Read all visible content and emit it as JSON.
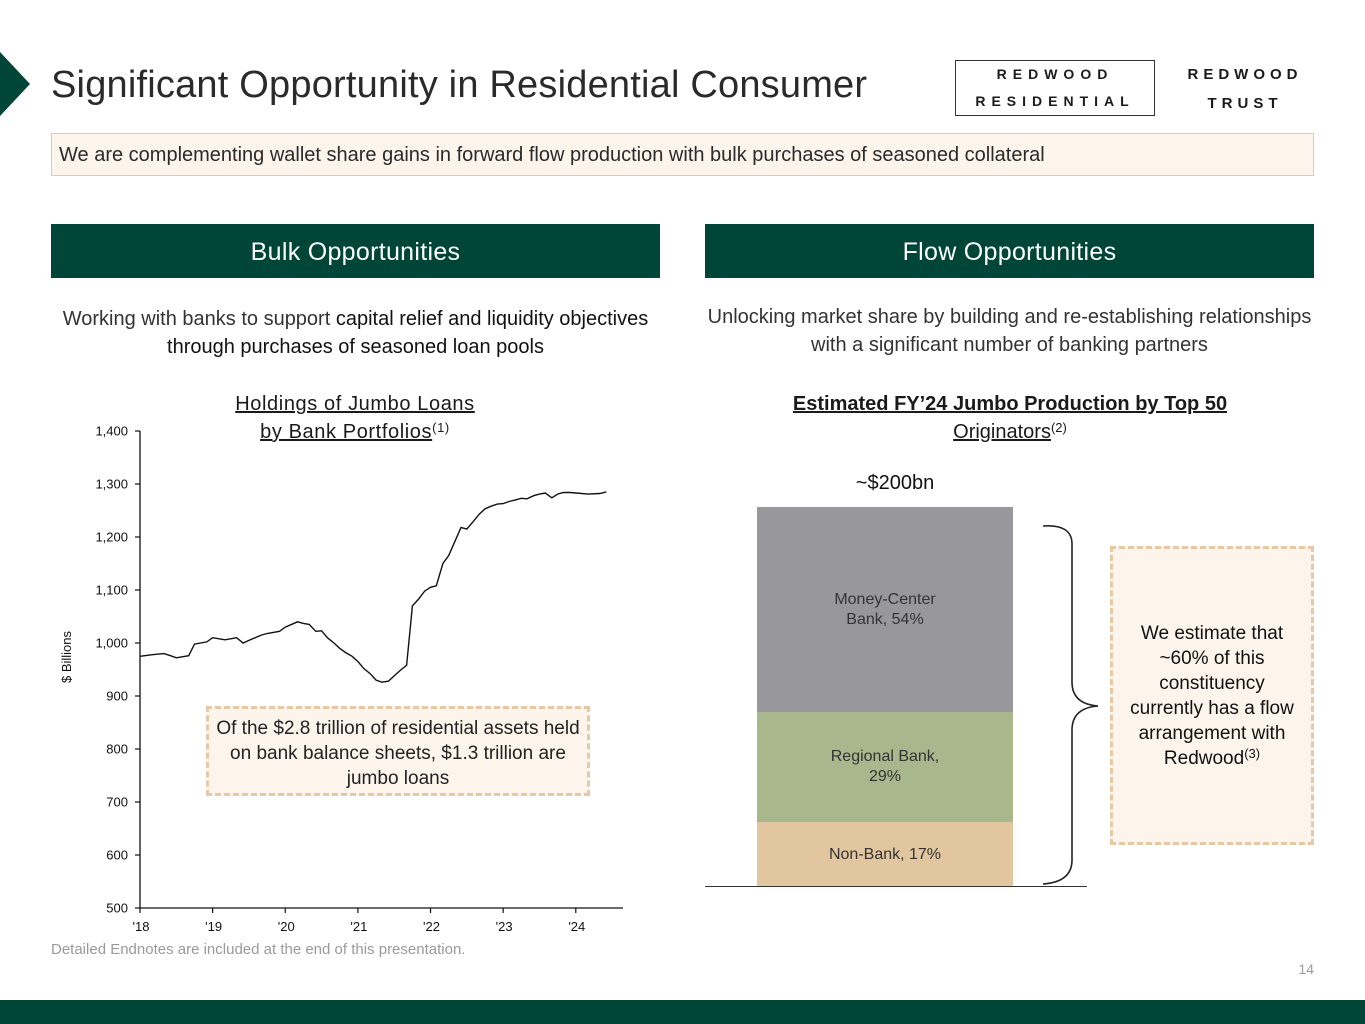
{
  "header": {
    "title": "Significant Opportunity in Residential Consumer",
    "logo_residential_line1": "REDWOOD",
    "logo_residential_line2": "RESIDENTIAL",
    "logo_trust_line1": "REDWOOD",
    "logo_trust_line2": "TRUST"
  },
  "banner": {
    "text": "We are complementing wallet share gains in forward flow production with bulk purchases of seasoned collateral"
  },
  "bulk": {
    "header": "Bulk Opportunities",
    "desc_part1": "Working with banks to support ",
    "desc_part2": "capital relief and liquidity objectives through purchases of seasoned loan pools",
    "chart_title_line1": "Holdings of Jumbo Loans",
    "chart_title_line2": "by Bank Portfolios",
    "chart_title_note": "(1)",
    "callout": "Of the $2.8 trillion of residential assets held on bank balance sheets, $1.3 trillion are jumbo loans"
  },
  "flow": {
    "header": "Flow Opportunities",
    "desc": "Unlocking market share by building and re-establishing relationships with a significant number of banking partners",
    "chart_title_line1": "Estimated FY’24 Jumbo Production by Top 50",
    "chart_title_line2": "Originators",
    "chart_title_note": "(2)",
    "callout_text": "We estimate that ~60% of this constituency currently has a flow arrangement with Redwood",
    "callout_note": "(3)"
  },
  "chart_data": [
    {
      "type": "line",
      "title": "Holdings of Jumbo Loans by Bank Portfolios(1)",
      "xlabel": "",
      "ylabel": "$ Billions",
      "ylim": [
        500,
        1400
      ],
      "xlim": [
        2018,
        2024.65
      ],
      "yticks": [
        "500",
        "600",
        "700",
        "800",
        "900",
        "1,000",
        "1,100",
        "1,200",
        "1,300",
        "1,400"
      ],
      "xticks": [
        "'18",
        "'19",
        "'20",
        "'21",
        "'22",
        "'23",
        "'24"
      ],
      "series": [
        {
          "name": "Jumbo Loans",
          "x": [
            2018.0,
            2018.17,
            2018.33,
            2018.42,
            2018.5,
            2018.67,
            2018.75,
            2018.92,
            2019.0,
            2019.17,
            2019.33,
            2019.42,
            2019.5,
            2019.67,
            2019.75,
            2019.92,
            2020.0,
            2020.17,
            2020.25,
            2020.33,
            2020.42,
            2020.5,
            2020.58,
            2020.67,
            2020.75,
            2020.83,
            2020.92,
            2021.0,
            2021.08,
            2021.17,
            2021.25,
            2021.33,
            2021.42,
            2021.5,
            2021.58,
            2021.67,
            2021.75,
            2021.83,
            2021.92,
            2022.0,
            2022.08,
            2022.17,
            2022.25,
            2022.33,
            2022.42,
            2022.5,
            2022.58,
            2022.67,
            2022.75,
            2022.83,
            2022.92,
            2023.0,
            2023.08,
            2023.17,
            2023.25,
            2023.33,
            2023.42,
            2023.5,
            2023.58,
            2023.67,
            2023.75,
            2023.83,
            2023.92,
            2024.0,
            2024.17,
            2024.33,
            2024.42
          ],
          "values": [
            975,
            978,
            980,
            976,
            972,
            976,
            998,
            1002,
            1010,
            1006,
            1010,
            1000,
            1005,
            1015,
            1018,
            1022,
            1030,
            1040,
            1037,
            1035,
            1022,
            1023,
            1010,
            1000,
            990,
            982,
            975,
            965,
            952,
            942,
            930,
            926,
            928,
            938,
            948,
            958,
            1070,
            1082,
            1098,
            1105,
            1108,
            1150,
            1165,
            1190,
            1218,
            1215,
            1228,
            1243,
            1253,
            1258,
            1262,
            1263,
            1267,
            1270,
            1273,
            1272,
            1278,
            1281,
            1283,
            1274,
            1281,
            1284,
            1284,
            1283,
            1281,
            1282,
            1285
          ]
        }
      ]
    },
    {
      "type": "bar",
      "title": "Estimated FY’24 Jumbo Production by Top 50 Originators(2)",
      "total_label": "~$200bn",
      "categories": [
        "Money-Center Bank",
        "Regional Bank",
        "Non-Bank"
      ],
      "values": [
        54,
        29,
        17
      ],
      "unit": "%",
      "labels": [
        "Money-Center Bank, 54%",
        "Regional Bank, 29%",
        "Non-Bank, 17%"
      ]
    }
  ],
  "bar_labels": {
    "money_center_line1": "Money-Center",
    "money_center_line2": "Bank, 54%",
    "regional_line1": "Regional Bank,",
    "regional_line2": "29%",
    "nonbank": "Non-Bank, 17%"
  },
  "footer": {
    "footnote": "Detailed Endnotes are included at the end of this presentation.",
    "page_number": "14"
  },
  "colors": {
    "brand_green": "#004638",
    "callout_fill": "#fdf4ec",
    "callout_border": "#e6c9a4",
    "money_center": "#98989c",
    "regional": "#a9b78c",
    "nonbank": "#e2c69f"
  }
}
